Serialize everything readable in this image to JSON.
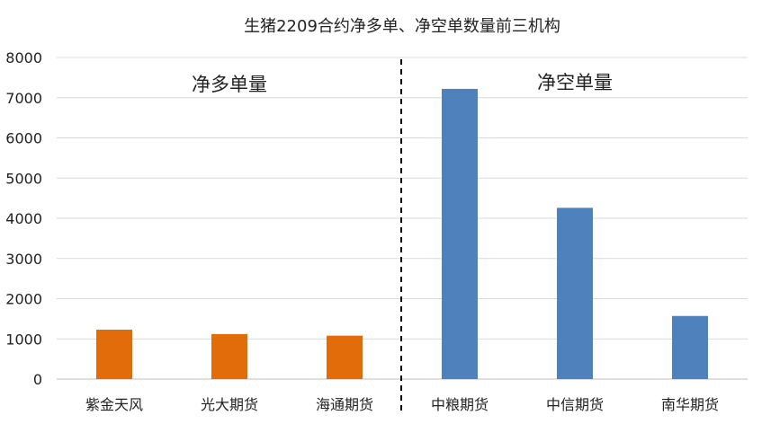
{
  "chart_data": {
    "type": "bar",
    "title": "生猪2209合约净多单、净空单数量前三机构",
    "xlabel": "",
    "ylabel": "",
    "ylim": [
      0,
      8000
    ],
    "yticks": [
      0,
      1000,
      2000,
      3000,
      4000,
      5000,
      6000,
      7000,
      8000
    ],
    "grid": true,
    "legend": "none",
    "categories": [
      "紫金天风",
      "光大期货",
      "海通期货",
      "中粮期货",
      "中信期货",
      "南华期货"
    ],
    "values": [
      1230,
      1120,
      1080,
      7220,
      4260,
      1570
    ],
    "groups": [
      {
        "label": "净多单量",
        "categories": [
          "紫金天风",
          "光大期货",
          "海通期货"
        ],
        "color": "#E36C0A"
      },
      {
        "label": "净空单量",
        "categories": [
          "中粮期货",
          "中信期货",
          "南华期货"
        ],
        "color": "#4F81BD"
      }
    ]
  }
}
